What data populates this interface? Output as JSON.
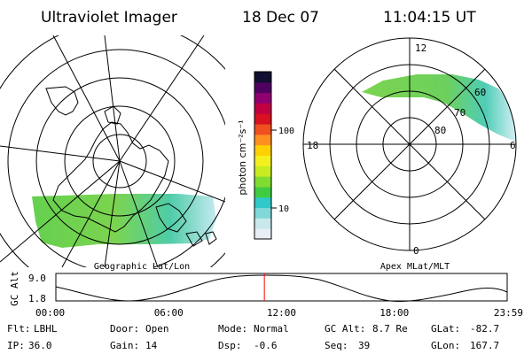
{
  "header": {
    "instrument": "Ultraviolet Imager",
    "date": "18 Dec 07",
    "time": "11:04:15 UT"
  },
  "geo_panel": {
    "caption": "Geographic Lat/Lon"
  },
  "apex_panel": {
    "caption": "Apex MLat/MLT",
    "mlt_labels": {
      "top": "12",
      "left": "18",
      "right": "6",
      "bottom": "0"
    },
    "mlat_labels": [
      "60",
      "70",
      "80"
    ]
  },
  "colorbar": {
    "unit_label": "photon cm⁻²s⁻¹",
    "ticks": [
      "100",
      "10"
    ],
    "colors": [
      "#e8eef4",
      "#c8e8ec",
      "#80d8d8",
      "#30c8c8",
      "#40cc40",
      "#80dc30",
      "#c8ec20",
      "#f4f020",
      "#ffd000",
      "#ff9020",
      "#f05020",
      "#d81020",
      "#c00040",
      "#900070",
      "#500060",
      "#101030"
    ]
  },
  "orbit": {
    "ylabel": "GC Alt",
    "y_ticks": [
      "9.0",
      "1.8"
    ],
    "x_ticks": [
      "00:00",
      "06:00",
      "12:00",
      "18:00",
      "23:59"
    ],
    "current_time_fraction": 0.462,
    "current_marker_color": "#ff0000"
  },
  "status": {
    "row1": [
      {
        "label": "Flt:",
        "value": "LBHL"
      },
      {
        "label": "Door:",
        "value": "Open"
      },
      {
        "label": "Mode:",
        "value": "Normal"
      },
      {
        "label": "GC Alt:",
        "value": "8.7 Re"
      },
      {
        "label": "GLat:",
        "value": "-82.7"
      }
    ],
    "row2": [
      {
        "label": "IP:",
        "value": "36.0"
      },
      {
        "label": "Gain:",
        "value": "14"
      },
      {
        "label": "Dsp:",
        "value": "-0.6"
      },
      {
        "label": "Seq:",
        "value": "39"
      },
      {
        "label": "GLon:",
        "value": "167.7"
      }
    ]
  }
}
